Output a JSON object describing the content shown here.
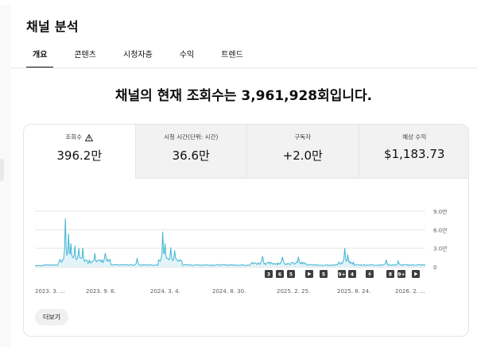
{
  "page": {
    "title": "채널 분석"
  },
  "tabs": [
    {
      "label": "개요",
      "active": true
    },
    {
      "label": "콘텐츠",
      "active": false
    },
    {
      "label": "시청자층",
      "active": false
    },
    {
      "label": "수익",
      "active": false
    },
    {
      "label": "트렌드",
      "active": false
    }
  ],
  "headline": "채널의 현재 조회수는 3,961,928회입니다.",
  "metrics": [
    {
      "label": "조회수",
      "value": "396.2만",
      "warning": true,
      "active": true
    },
    {
      "label": "시청 시간(단위: 시간)",
      "value": "36.6만",
      "warning": false,
      "active": false
    },
    {
      "label": "구독자",
      "value": "+2.0만",
      "warning": false,
      "active": false
    },
    {
      "label": "예상 수익",
      "value": "$1,183.73",
      "warning": false,
      "active": false
    }
  ],
  "chart_data": {
    "type": "line",
    "series_color": "#41b4d2",
    "x_tick_labels": [
      "2023. 3. ...",
      "2023. 9. 6.",
      "2024. 3. 4.",
      "2024. 8. 30.",
      "2025. 2. 25.",
      "2025. 8. 24.",
      "2026. 2. ..."
    ],
    "y_tick_labels": [
      "9.0만",
      "6.0만",
      "3.0만",
      "0"
    ],
    "ylim": [
      0,
      90000
    ],
    "grid": true,
    "events": [
      {
        "label": "3",
        "kind": "number"
      },
      {
        "label": "6",
        "kind": "number"
      },
      {
        "label": "5",
        "kind": "number"
      },
      {
        "label": "",
        "kind": "video"
      },
      {
        "label": "5",
        "kind": "number"
      },
      {
        "label": "9+",
        "kind": "number"
      },
      {
        "label": "4",
        "kind": "number"
      },
      {
        "label": "",
        "kind": "shorts"
      },
      {
        "label": "8",
        "kind": "number"
      },
      {
        "label": "9+",
        "kind": "number"
      },
      {
        "label": "",
        "kind": "video"
      }
    ]
  },
  "more_button": {
    "label": "더보기"
  }
}
